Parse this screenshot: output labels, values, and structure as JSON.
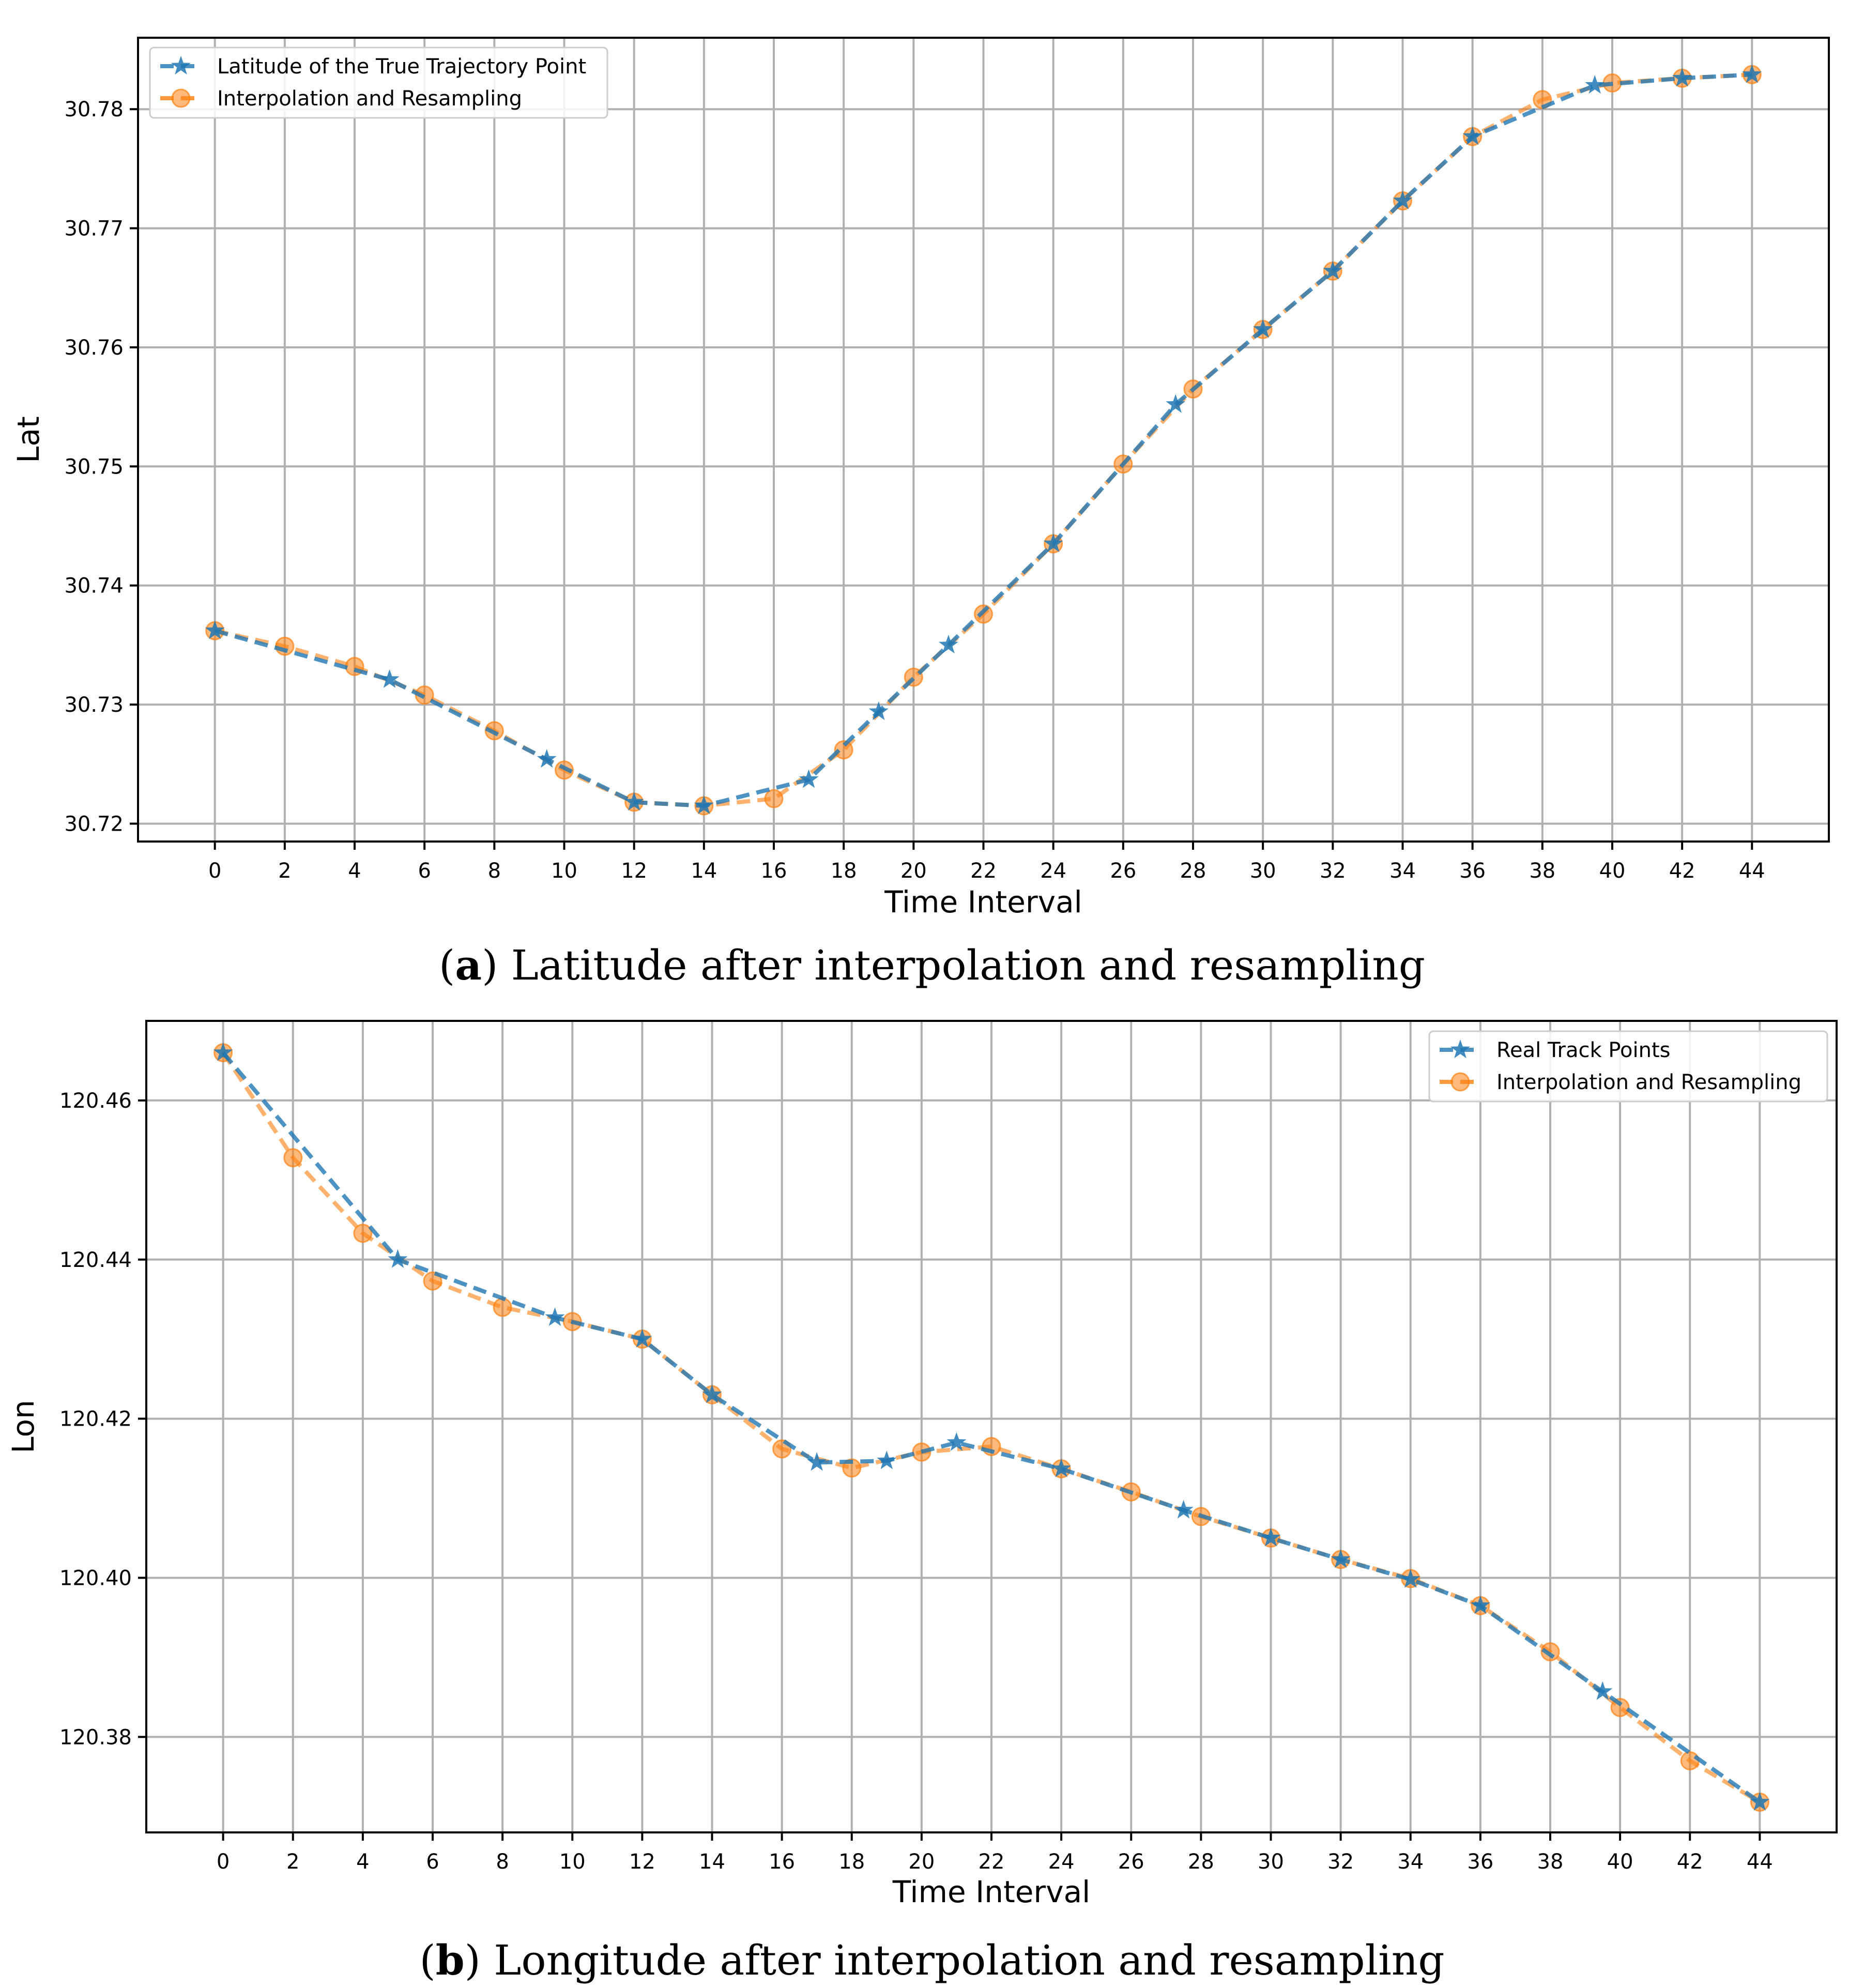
{
  "colors": {
    "series_true": "#1f77b4",
    "series_interp": "#ff7f0e",
    "grid": "#b0b0b0",
    "axes": "#000000"
  },
  "captions": [
    {
      "label": "a",
      "open": "(",
      "close": ")",
      "text": " Latitude after interpolation and resampling"
    },
    {
      "label": "b",
      "open": "(",
      "close": ")",
      "text": " Longitude after interpolation and resampling"
    }
  ],
  "chart_data": [
    {
      "type": "line",
      "title": "",
      "xlabel": "Time Interval",
      "ylabel": "Lat",
      "xlim": [
        -2.2,
        46.2
      ],
      "ylim": [
        30.7185,
        30.786
      ],
      "xticks": [
        0,
        2,
        4,
        6,
        8,
        10,
        12,
        14,
        16,
        18,
        20,
        22,
        24,
        26,
        28,
        30,
        32,
        34,
        36,
        38,
        40,
        42,
        44
      ],
      "yticks": [
        30.72,
        30.73,
        30.74,
        30.75,
        30.76,
        30.77,
        30.78
      ],
      "ytick_labels": [
        "30.72",
        "30.73",
        "30.74",
        "30.75",
        "30.76",
        "30.77",
        "30.78"
      ],
      "grid": true,
      "legend_position": "top-left",
      "series": [
        {
          "name": "Latitude of the True Trajectory Point",
          "marker": "star",
          "color": "#1f77b4",
          "x": [
            0,
            5,
            9.5,
            12,
            14,
            17,
            19,
            21,
            24,
            27.5,
            30,
            32,
            34,
            36,
            39.5,
            42,
            44
          ],
          "y": [
            30.7362,
            30.7321,
            30.7254,
            30.7218,
            30.7215,
            30.7237,
            30.7294,
            30.735,
            30.7435,
            30.7552,
            30.7615,
            30.7664,
            30.7723,
            30.7777,
            30.782,
            30.7826,
            30.7829
          ]
        },
        {
          "name": "Interpolation and Resampling",
          "marker": "circle",
          "color": "#ff7f0e",
          "x": [
            0,
            2,
            4,
            6,
            8,
            10,
            12,
            14,
            16,
            18,
            20,
            22,
            24,
            26,
            28,
            30,
            32,
            34,
            36,
            38,
            40,
            42,
            44
          ],
          "y": [
            30.7362,
            30.7349,
            30.7332,
            30.7308,
            30.7278,
            30.7245,
            30.7218,
            30.7215,
            30.7221,
            30.7262,
            30.7323,
            30.7376,
            30.7435,
            30.7502,
            30.7565,
            30.7615,
            30.7664,
            30.7723,
            30.7777,
            30.7808,
            30.7822,
            30.7826,
            30.7829
          ]
        }
      ]
    },
    {
      "type": "line",
      "title": "",
      "xlabel": "Time Interval",
      "ylabel": "Lon",
      "xlim": [
        -2.2,
        46.2
      ],
      "ylim": [
        120.368,
        120.47
      ],
      "xticks": [
        0,
        2,
        4,
        6,
        8,
        10,
        12,
        14,
        16,
        18,
        20,
        22,
        24,
        26,
        28,
        30,
        32,
        34,
        36,
        38,
        40,
        42,
        44
      ],
      "yticks": [
        120.38,
        120.4,
        120.42,
        120.44,
        120.46
      ],
      "ytick_labels": [
        "120.38",
        "120.40",
        "120.42",
        "120.44",
        "120.46"
      ],
      "grid": true,
      "legend_position": "top-right",
      "series": [
        {
          "name": "Real Track Points",
          "marker": "star",
          "color": "#1f77b4",
          "x": [
            0,
            5,
            9.5,
            12,
            14,
            17,
            19,
            21,
            24,
            27.5,
            30,
            32,
            34,
            36,
            39.5,
            44
          ],
          "y": [
            120.466,
            120.44,
            120.4327,
            120.43,
            120.423,
            120.4145,
            120.4147,
            120.417,
            120.4137,
            120.4085,
            120.405,
            120.4023,
            120.3998,
            120.3965,
            120.3857,
            120.3718
          ]
        },
        {
          "name": "Interpolation and Resampling",
          "marker": "circle",
          "color": "#ff7f0e",
          "x": [
            0,
            2,
            4,
            6,
            8,
            10,
            12,
            14,
            16,
            18,
            20,
            22,
            24,
            26,
            28,
            30,
            32,
            34,
            36,
            38,
            40,
            42,
            44
          ],
          "y": [
            120.466,
            120.4528,
            120.4433,
            120.4373,
            120.434,
            120.4322,
            120.43,
            120.423,
            120.4162,
            120.4138,
            120.4158,
            120.4165,
            120.4137,
            120.4108,
            120.4077,
            120.405,
            120.4023,
            120.3999,
            120.3965,
            120.3907,
            120.3837,
            120.377,
            120.3718
          ]
        }
      ]
    }
  ]
}
